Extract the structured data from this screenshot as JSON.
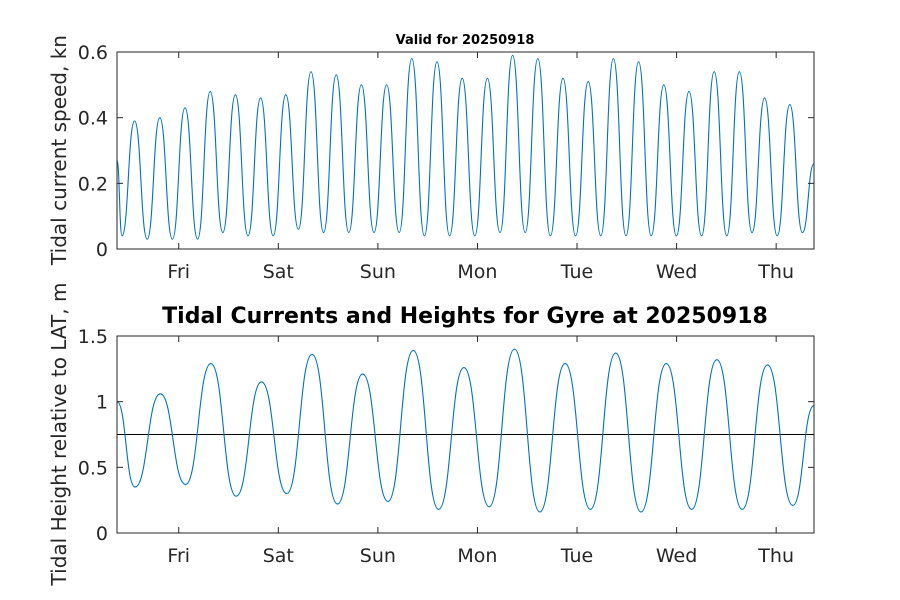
{
  "chart_data": [
    {
      "type": "line",
      "title": "Valid for 20250918",
      "ylabel": "Tidal current speed, kn",
      "ylim": [
        0,
        0.6
      ],
      "yticks": [
        0,
        0.2,
        0.4,
        0.6
      ],
      "ytick_labels": [
        "0",
        "0.2",
        "0.4",
        "0.6"
      ],
      "xlim_days": [
        0,
        7
      ],
      "xtick_days": [
        0.62,
        1.62,
        2.62,
        3.62,
        4.62,
        5.62,
        6.62
      ],
      "xtick_labels": [
        "Fri",
        "Sat",
        "Sun",
        "Mon",
        "Tue",
        "Wed",
        "Thu"
      ],
      "grid": false,
      "series_color": "#0072BD",
      "start_value": 0.27,
      "end_value": 0.26,
      "peaks": [
        0.39,
        0.4,
        0.43,
        0.48,
        0.47,
        0.46,
        0.47,
        0.54,
        0.53,
        0.5,
        0.5,
        0.58,
        0.57,
        0.52,
        0.52,
        0.59,
        0.58,
        0.52,
        0.51,
        0.58,
        0.57,
        0.5,
        0.48,
        0.54,
        0.54,
        0.46,
        0.44
      ],
      "troughs": [
        0.04,
        0.03,
        0.03,
        0.03,
        0.05,
        0.04,
        0.04,
        0.06,
        0.05,
        0.05,
        0.05,
        0.05,
        0.04,
        0.04,
        0.04,
        0.05,
        0.05,
        0.04,
        0.04,
        0.04,
        0.04,
        0.04,
        0.04,
        0.04,
        0.04,
        0.05,
        0.04,
        0.05
      ]
    },
    {
      "type": "line",
      "title": "Tidal Currents and Heights for Gyre at 20250918",
      "ylabel": "Tidal Height relative to LAT, m",
      "ylim": [
        0,
        1.5
      ],
      "yticks": [
        0,
        0.5,
        1,
        1.5
      ],
      "ytick_labels": [
        "0",
        "0.5",
        "1",
        "1.5"
      ],
      "xlim_days": [
        0,
        7
      ],
      "xtick_days": [
        0.62,
        1.62,
        2.62,
        3.62,
        4.62,
        5.62,
        6.62
      ],
      "xtick_labels": [
        "Fri",
        "Sat",
        "Sun",
        "Mon",
        "Tue",
        "Wed",
        "Thu"
      ],
      "grid": false,
      "series_color": "#0072BD",
      "reference_level": 0.75,
      "reference_color": "#000000",
      "start_value": 1.0,
      "end_value": 0.97,
      "lows": [
        0.35,
        0.37,
        0.28,
        0.3,
        0.22,
        0.24,
        0.18,
        0.2,
        0.16,
        0.18,
        0.16,
        0.18,
        0.18,
        0.21
      ],
      "highs": [
        1.06,
        1.29,
        1.15,
        1.36,
        1.21,
        1.39,
        1.26,
        1.4,
        1.29,
        1.37,
        1.29,
        1.32,
        1.28
      ]
    }
  ]
}
